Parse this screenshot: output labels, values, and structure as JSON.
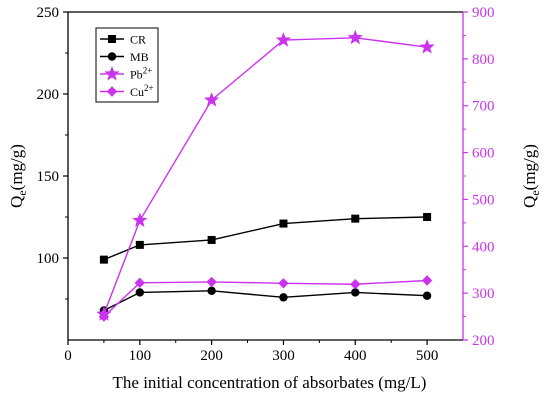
{
  "chart_data": {
    "type": "line",
    "xlabel": "The initial concentration of absorbates (mg/L)",
    "ylabel_left": {
      "main": "Q",
      "sub": "e",
      "rest": "(mg/g)"
    },
    "ylabel_right": {
      "main": "Q",
      "sub": "e",
      "rest": "(mg/g)"
    },
    "xlim": [
      0,
      550
    ],
    "ylim_left": [
      50,
      250
    ],
    "ylim_right": [
      200,
      900
    ],
    "x_ticks": [
      0,
      100,
      200,
      300,
      400,
      500
    ],
    "x_tick_labels": [
      "0",
      "100",
      "200",
      "300",
      "400",
      "500"
    ],
    "y_left_ticks": [
      100,
      150,
      200,
      250
    ],
    "y_left_tick_labels": [
      "100",
      "150",
      "200",
      "250"
    ],
    "y_right_ticks": [
      200,
      300,
      400,
      500,
      600,
      700,
      800,
      900
    ],
    "y_right_tick_labels": [
      "200",
      "300",
      "400",
      "500",
      "600",
      "700",
      "800",
      "900"
    ],
    "legend_position": "top-left",
    "series": [
      {
        "name": "CR",
        "legend_main": "CR",
        "legend_sup": "",
        "axis": "left",
        "marker": "square",
        "color": "#000000",
        "x": [
          50,
          100,
          200,
          300,
          400,
          500
        ],
        "y": [
          99,
          108,
          111,
          121,
          124,
          125
        ]
      },
      {
        "name": "MB",
        "legend_main": "MB",
        "legend_sup": "",
        "axis": "left",
        "marker": "circle",
        "color": "#000000",
        "x": [
          50,
          100,
          200,
          300,
          400,
          500
        ],
        "y": [
          68,
          79,
          80,
          76,
          79,
          77
        ]
      },
      {
        "name": "Pb2+",
        "legend_main": "Pb",
        "legend_sup": "2+",
        "axis": "right",
        "marker": "star",
        "color": "#cc33ee",
        "x": [
          50,
          100,
          200,
          300,
          400,
          500
        ],
        "y": [
          255,
          455,
          712,
          840,
          845,
          825
        ]
      },
      {
        "name": "Cu2+",
        "legend_main": "Cu",
        "legend_sup": "2+",
        "axis": "right",
        "marker": "diamond",
        "color": "#cc33ee",
        "x": [
          50,
          100,
          200,
          300,
          400,
          500
        ],
        "y": [
          250,
          322,
          324,
          321,
          319,
          327
        ]
      }
    ]
  }
}
